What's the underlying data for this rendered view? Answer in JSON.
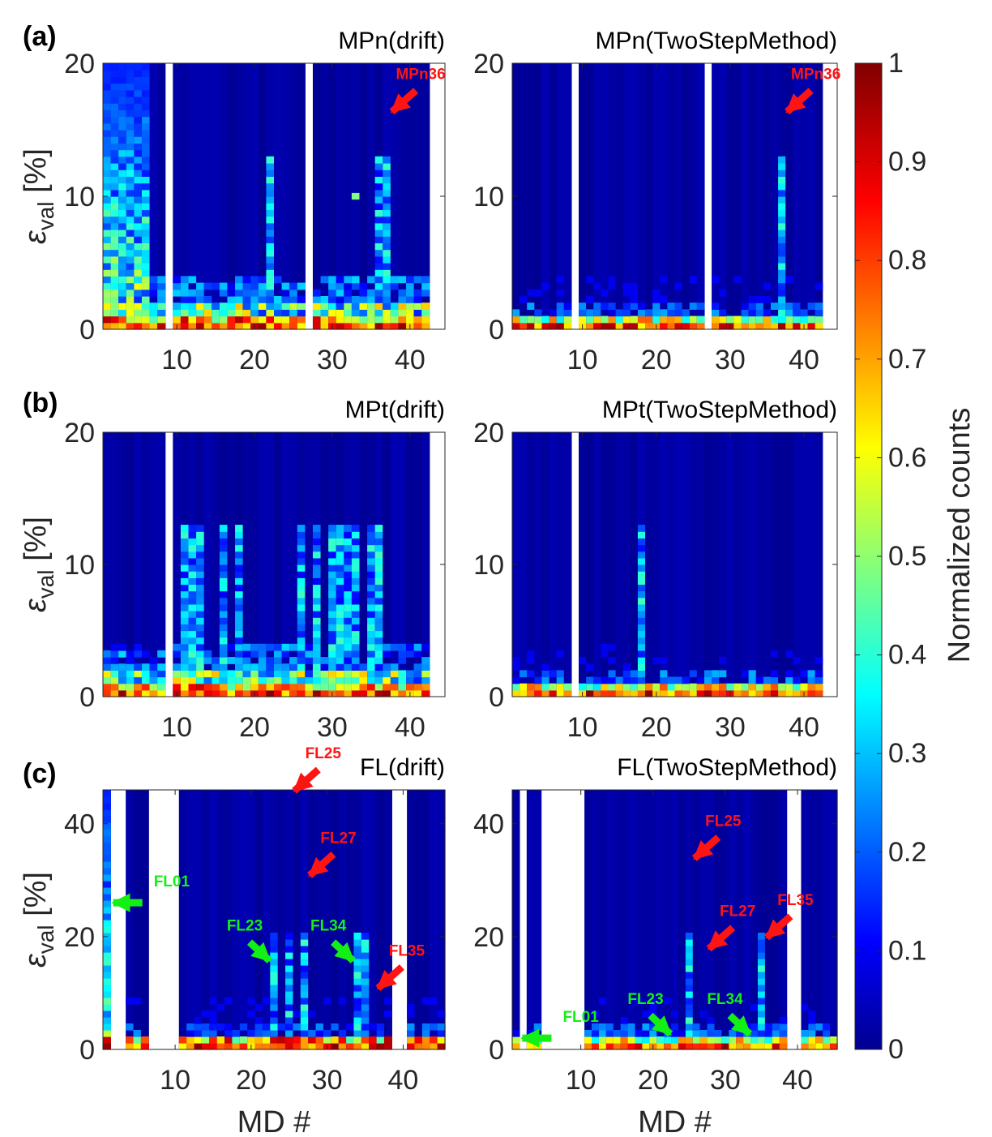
{
  "figure": {
    "colorbar": {
      "label": "Normalized counts",
      "ticks": [
        "0",
        "0.1",
        "0.2",
        "0.3",
        "0.4",
        "0.5",
        "0.6",
        "0.7",
        "0.8",
        "0.9",
        "1"
      ],
      "range": [
        0,
        1
      ],
      "colormap": "jet"
    },
    "axis_labels": {
      "xlabel": "MD #",
      "ylabel_main": "ε",
      "ylabel_sub": "val",
      "ylabel_unit": "[%]"
    }
  },
  "chart_data": [
    {
      "type": "heatmap",
      "row_label": "(a)",
      "title": "MPn(drift)",
      "xlabel": "",
      "ylabel": "ε_val [%]",
      "xlim": [
        1,
        44
      ],
      "ylim": [
        0,
        20
      ],
      "xticks": [
        "10",
        "20",
        "30",
        "40"
      ],
      "yticks": [
        "0",
        "10",
        "20"
      ],
      "md_range": [
        1,
        42
      ],
      "missing_md": [
        9,
        27
      ],
      "strong_md": [
        22,
        36,
        37
      ],
      "dense_md": [
        1,
        2,
        3,
        4,
        5,
        6
      ],
      "outlier_cell": {
        "md": 33,
        "eval": 10,
        "value": 0.5
      },
      "annotations": [
        {
          "text": "MPn36",
          "md": 37,
          "eval": 16,
          "color": "#ff1414"
        }
      ]
    },
    {
      "type": "heatmap",
      "row_label": "",
      "title": "MPn(TwoStepMethod)",
      "xlabel": "",
      "ylabel": "",
      "xlim": [
        1,
        44
      ],
      "ylim": [
        0,
        20
      ],
      "xticks": [
        "10",
        "20",
        "30",
        "40"
      ],
      "yticks": [
        "0",
        "10",
        "20"
      ],
      "md_range": [
        1,
        42
      ],
      "missing_md": [
        9,
        27
      ],
      "strong_md": [
        37
      ],
      "dense_md": [],
      "outlier_cell": null,
      "annotations": [
        {
          "text": "MPn36",
          "md": 37,
          "eval": 16,
          "color": "#ff1414"
        }
      ]
    },
    {
      "type": "heatmap",
      "row_label": "(b)",
      "title": "MPt(drift)",
      "xlabel": "",
      "ylabel": "ε_val [%]",
      "xlim": [
        1,
        44
      ],
      "ylim": [
        0,
        20
      ],
      "xticks": [
        "10",
        "20",
        "30",
        "40"
      ],
      "yticks": [
        "0",
        "10",
        "20"
      ],
      "md_range": [
        1,
        42
      ],
      "missing_md": [
        9
      ],
      "strong_md": [
        11,
        12,
        13,
        16,
        18,
        26,
        28,
        30,
        31,
        32,
        33,
        35,
        36
      ],
      "dense_md": [],
      "outlier_cell": null,
      "annotations": []
    },
    {
      "type": "heatmap",
      "row_label": "",
      "title": "MPt(TwoStepMethod)",
      "xlabel": "",
      "ylabel": "",
      "xlim": [
        1,
        44
      ],
      "ylim": [
        0,
        20
      ],
      "xticks": [
        "10",
        "20",
        "30",
        "40"
      ],
      "yticks": [
        "0",
        "10",
        "20"
      ],
      "md_range": [
        1,
        42
      ],
      "missing_md": [
        9
      ],
      "strong_md": [
        18
      ],
      "dense_md": [],
      "outlier_cell": null,
      "annotations": []
    },
    {
      "type": "heatmap",
      "row_label": "(c)",
      "title": "FL(drift)",
      "xlabel": "MD #",
      "ylabel": "ε_val [%]",
      "xlim": [
        1,
        45
      ],
      "ylim": [
        0,
        46
      ],
      "xticks": [
        "10",
        "20",
        "30",
        "40"
      ],
      "yticks": [
        "0",
        "20",
        "40"
      ],
      "md_range": [
        1,
        45
      ],
      "missing_md": [
        2,
        3,
        7,
        8,
        9,
        10,
        39,
        40
      ],
      "strong_md": [
        1,
        23,
        25,
        27,
        34,
        35
      ],
      "dense_md": [
        1
      ],
      "outlier_cell": null,
      "annotations": [
        {
          "text": "FL01",
          "md": 1,
          "eval": 26,
          "color": "#13f013"
        },
        {
          "text": "FL23",
          "md": 23,
          "eval": 15,
          "color": "#13f013"
        },
        {
          "text": "FL34",
          "md": 34,
          "eval": 15,
          "color": "#13f013"
        },
        {
          "text": "FL25",
          "md": 25,
          "eval": 45,
          "color": "#ff1414"
        },
        {
          "text": "FL27",
          "md": 27,
          "eval": 30,
          "color": "#ff1414"
        },
        {
          "text": "FL35",
          "md": 36,
          "eval": 10,
          "color": "#ff1414"
        }
      ]
    },
    {
      "type": "heatmap",
      "row_label": "",
      "title": "FL(TwoStepMethod)",
      "xlabel": "MD #",
      "ylabel": "",
      "xlim": [
        1,
        45
      ],
      "ylim": [
        0,
        46
      ],
      "xticks": [
        "10",
        "20",
        "30",
        "40"
      ],
      "yticks": [
        "0",
        "20",
        "40"
      ],
      "md_range": [
        1,
        45
      ],
      "missing_md": [
        2,
        5,
        6,
        7,
        8,
        9,
        10,
        39,
        40
      ],
      "strong_md": [
        25,
        35
      ],
      "dense_md": [],
      "outlier_cell": null,
      "annotations": [
        {
          "text": "FL01",
          "md": 1,
          "eval": 2,
          "color": "#13f013"
        },
        {
          "text": "FL23",
          "md": 23,
          "eval": 2,
          "color": "#13f013"
        },
        {
          "text": "FL34",
          "md": 34,
          "eval": 2,
          "color": "#13f013"
        },
        {
          "text": "FL25",
          "md": 25,
          "eval": 33,
          "color": "#ff1414"
        },
        {
          "text": "FL27",
          "md": 27,
          "eval": 17,
          "color": "#ff1414"
        },
        {
          "text": "FL35",
          "md": 35,
          "eval": 19,
          "color": "#ff1414"
        }
      ]
    }
  ]
}
